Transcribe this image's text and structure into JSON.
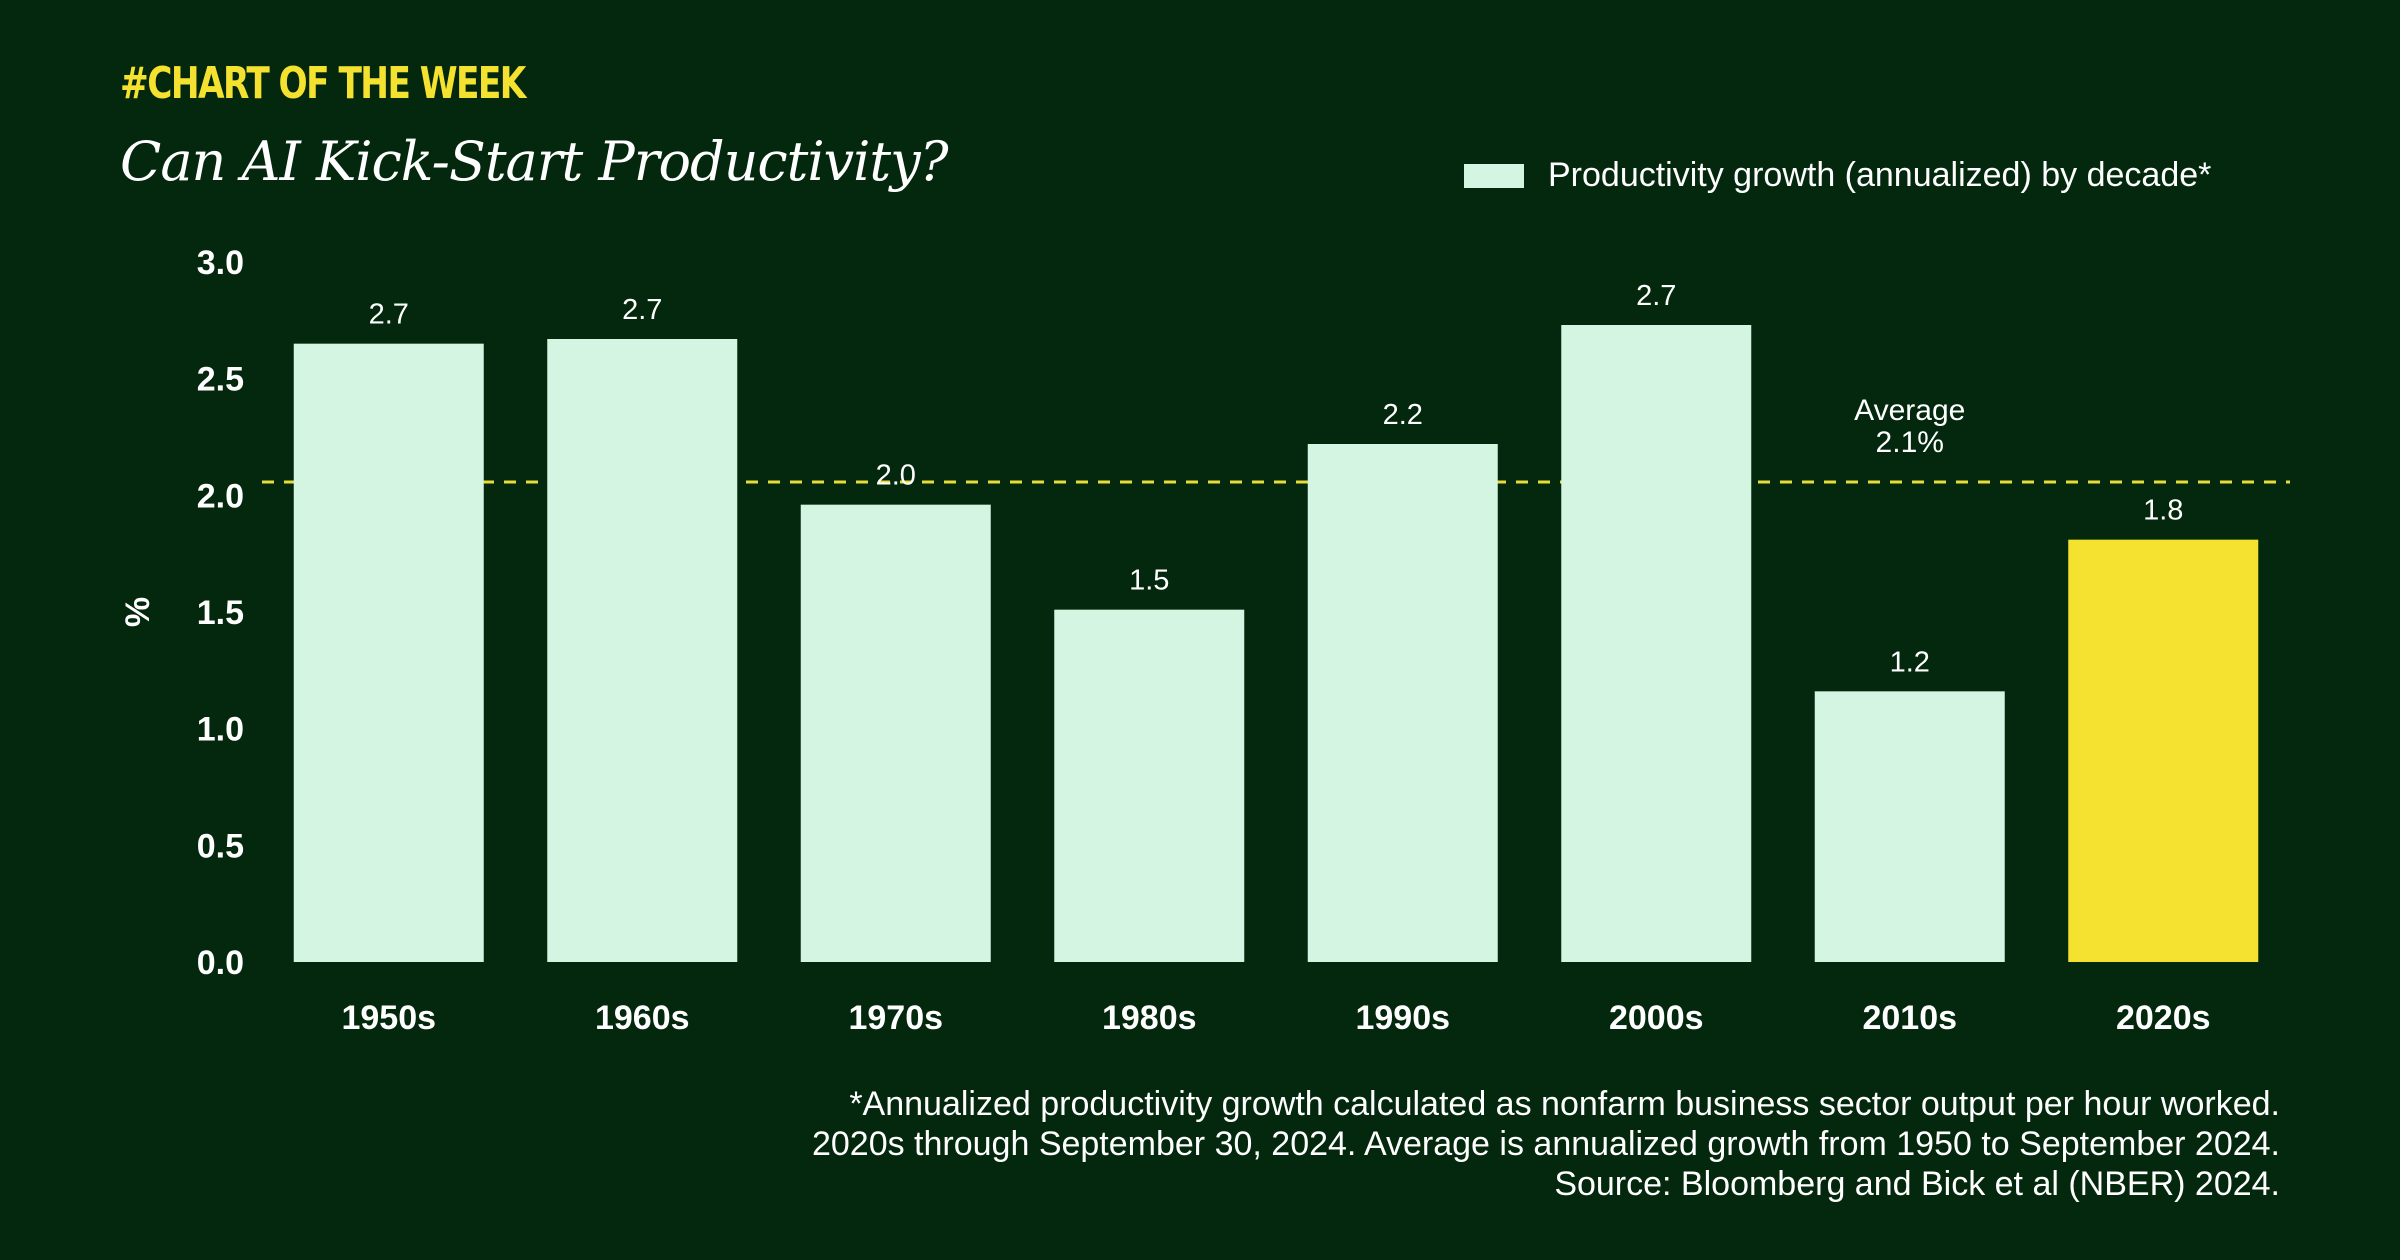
{
  "header": {
    "kicker": "#CHART OF THE WEEK",
    "title": "Can AI Kick-Start Productivity?"
  },
  "legend": {
    "label": "Productivity growth (annualized) by decade*"
  },
  "chart_data": {
    "type": "bar",
    "title": "Can AI Kick-Start Productivity?",
    "ylabel": "%",
    "xlabel": "",
    "ylim": [
      0,
      3.0
    ],
    "yticks": [
      "0.0",
      "0.5",
      "1.0",
      "1.5",
      "2.0",
      "2.5",
      "3.0"
    ],
    "categories": [
      "1950s",
      "1960s",
      "1970s",
      "1980s",
      "1990s",
      "2000s",
      "2010s",
      "2020s"
    ],
    "series": [
      {
        "name": "Productivity growth (annualized) by decade*",
        "values": [
          2.65,
          2.67,
          1.96,
          1.51,
          2.22,
          2.73,
          1.16,
          1.81
        ],
        "labels": [
          "2.7",
          "2.7",
          "2.0",
          "1.5",
          "2.2",
          "2.7",
          "1.2",
          "1.8"
        ]
      }
    ],
    "highlight_index": 7,
    "average": {
      "value": 2.1,
      "label_line1": "Average",
      "label_line2": "2.1%"
    },
    "legend_position": "top-right",
    "grid": false,
    "colors": {
      "bar": "#d4f5e2",
      "highlight": "#f5e12f",
      "average_line": "#e7dc3a",
      "background": "#03280d"
    }
  },
  "footnote": {
    "line1": "*Annualized productivity growth calculated as nonfarm business sector output per hour worked.",
    "line2": "2020s through September 30, 2024. Average is annualized growth from 1950 to September 2024.",
    "line3": "Source: Bloomberg and Bick et al (NBER) 2024."
  }
}
